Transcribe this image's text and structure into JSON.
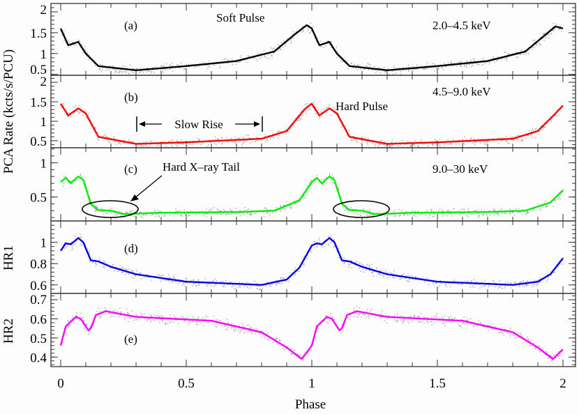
{
  "chart_data": {
    "type": "line",
    "xlabel": "Phase",
    "xlim": [
      -0.04,
      2.05
    ],
    "xticks": [
      "0",
      "0.5",
      "1",
      "1.5",
      "2"
    ],
    "xtick_values": [
      0,
      0.5,
      1,
      1.5,
      2
    ],
    "shared_ylabel": "PCA Rate (kcts/s/PCU)",
    "grid": false,
    "scatter_color": "#a8a8a8",
    "panels": [
      {
        "label": "(a)",
        "energy": "2.0–4.5 keV",
        "ylabel": "",
        "color": "#000000",
        "ylim": [
          0.48,
          2.2
        ],
        "yticks": [
          "0.5",
          "1",
          "1.5",
          "2"
        ],
        "ytick_values": [
          0.5,
          1,
          1.5,
          2
        ],
        "x": [
          0,
          0.03,
          0.07,
          0.1,
          0.15,
          0.3,
          0.5,
          0.7,
          0.85,
          0.93,
          0.98,
          1.0,
          1.03,
          1.07,
          1.1,
          1.15,
          1.3,
          1.5,
          1.7,
          1.85,
          1.93,
          1.97,
          2.0
        ],
        "y": [
          1.6,
          1.2,
          1.28,
          1.0,
          0.7,
          0.6,
          0.7,
          0.82,
          1.05,
          1.45,
          1.68,
          1.6,
          1.2,
          1.28,
          1.0,
          0.7,
          0.6,
          0.7,
          0.82,
          1.05,
          1.45,
          1.65,
          1.6
        ],
        "annotations": [
          "Soft Pulse"
        ]
      },
      {
        "label": "(b)",
        "energy": "4.5–9.0 keV",
        "ylabel": "",
        "color": "#ff0000",
        "ylim": [
          0.32,
          2.18
        ],
        "yticks": [
          "0.5",
          "1",
          "1.5",
          "2"
        ],
        "ytick_values": [
          0.5,
          1,
          1.5,
          2
        ],
        "x": [
          0,
          0.03,
          0.07,
          0.1,
          0.15,
          0.3,
          0.5,
          0.8,
          0.9,
          0.97,
          1.0,
          1.03,
          1.07,
          1.1,
          1.15,
          1.3,
          1.5,
          1.8,
          1.9,
          1.97,
          2.0
        ],
        "y": [
          1.45,
          1.15,
          1.33,
          1.2,
          0.6,
          0.42,
          0.46,
          0.55,
          0.75,
          1.3,
          1.45,
          1.15,
          1.33,
          1.2,
          0.6,
          0.42,
          0.46,
          0.55,
          0.75,
          1.2,
          1.4
        ],
        "annotations": [
          "Hard Pulse",
          "Slow Rise"
        ]
      },
      {
        "label": "(c)",
        "energy": "9.0–30 keV",
        "ylabel": "",
        "color": "#00ee00",
        "ylim": [
          0.15,
          1.22
        ],
        "yticks": [
          "0.5",
          "1"
        ],
        "ytick_values": [
          0.5,
          1
        ],
        "x": [
          0,
          0.02,
          0.04,
          0.07,
          0.09,
          0.12,
          0.15,
          0.2,
          0.25,
          0.4,
          0.7,
          0.85,
          0.95,
          1.0,
          1.02,
          1.04,
          1.07,
          1.09,
          1.12,
          1.15,
          1.2,
          1.25,
          1.4,
          1.7,
          1.85,
          1.95,
          2.0
        ],
        "y": [
          0.72,
          0.78,
          0.7,
          0.8,
          0.75,
          0.4,
          0.31,
          0.3,
          0.25,
          0.27,
          0.28,
          0.3,
          0.45,
          0.72,
          0.78,
          0.7,
          0.8,
          0.75,
          0.4,
          0.31,
          0.3,
          0.25,
          0.27,
          0.28,
          0.3,
          0.42,
          0.6
        ],
        "annotations": [
          "Hard X–ray Tail"
        ]
      },
      {
        "label": "(d)",
        "energy": "",
        "ylabel": "HR1",
        "color": "#0000ee",
        "ylim": [
          0.52,
          1.2
        ],
        "yticks": [
          "0.6",
          "0.8",
          "1"
        ],
        "ytick_values": [
          0.6,
          0.8,
          1
        ],
        "x": [
          0,
          0.02,
          0.04,
          0.07,
          0.09,
          0.12,
          0.15,
          0.2,
          0.3,
          0.5,
          0.7,
          0.8,
          0.9,
          0.95,
          1.0,
          1.02,
          1.04,
          1.07,
          1.09,
          1.12,
          1.15,
          1.2,
          1.3,
          1.5,
          1.7,
          1.8,
          1.9,
          1.95,
          2.0
        ],
        "y": [
          0.92,
          0.99,
          0.98,
          1.04,
          1.0,
          0.83,
          0.82,
          0.77,
          0.7,
          0.63,
          0.61,
          0.6,
          0.65,
          0.76,
          0.97,
          0.99,
          0.98,
          1.04,
          1.0,
          0.83,
          0.82,
          0.77,
          0.7,
          0.63,
          0.61,
          0.6,
          0.63,
          0.7,
          0.85
        ],
        "annotations": []
      },
      {
        "label": "(e)",
        "energy": "",
        "ylabel": "HR2",
        "color": "#ff00ff",
        "ylim": [
          0.35,
          0.733
        ],
        "yticks": [
          "0.4",
          "0.5",
          "0.6",
          "0.7"
        ],
        "ytick_values": [
          0.4,
          0.5,
          0.6,
          0.7
        ],
        "x": [
          0,
          0.02,
          0.06,
          0.08,
          0.11,
          0.12,
          0.14,
          0.18,
          0.3,
          0.6,
          0.8,
          0.9,
          0.96,
          1.0,
          1.02,
          1.06,
          1.08,
          1.11,
          1.12,
          1.14,
          1.18,
          1.3,
          1.6,
          1.8,
          1.9,
          1.96,
          2.0
        ],
        "y": [
          0.46,
          0.56,
          0.61,
          0.6,
          0.54,
          0.55,
          0.62,
          0.64,
          0.61,
          0.59,
          0.53,
          0.45,
          0.39,
          0.46,
          0.56,
          0.61,
          0.6,
          0.54,
          0.55,
          0.62,
          0.64,
          0.61,
          0.59,
          0.53,
          0.45,
          0.39,
          0.44
        ],
        "annotations": []
      }
    ]
  }
}
